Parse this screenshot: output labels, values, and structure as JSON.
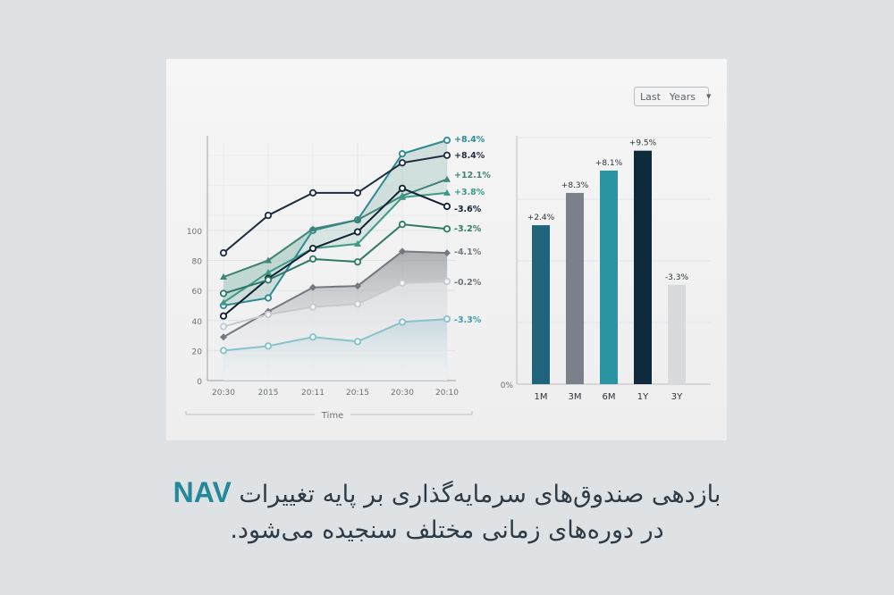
{
  "ui": {
    "dropdown": {
      "text1": "Last",
      "text2": "Years"
    },
    "caption_line1_pre": "بازدهی صندوق‌های سرمایه‌گذاری بر پایه تغییرات",
    "caption_line1_highlight": "NAV",
    "caption_line2": "در دوره‌های زمانی مختلف سنجیده می‌شود."
  },
  "chart_data": [
    {
      "type": "line",
      "xlabel": "Time",
      "x_ticks": [
        "20:30",
        "2015",
        "20:11",
        "20:15",
        "20:30",
        "20:10"
      ],
      "y_ticks": [
        0,
        20,
        40,
        60,
        80,
        100
      ],
      "ylim": [
        0,
        160
      ],
      "grid": true,
      "series": [
        {
          "label": "+8.4%",
          "color": "#2d8a93",
          "marker": "circle-open",
          "values": [
            50,
            55,
            100,
            107,
            151,
            160
          ]
        },
        {
          "label": "+8.4%",
          "color": "#1d2c40",
          "marker": "circle-open",
          "values": [
            85,
            110,
            125,
            125,
            145,
            150
          ]
        },
        {
          "label": "+12.1%",
          "color": "#3f8577",
          "marker": "triangle",
          "values": [
            69,
            80,
            101,
            107,
            123,
            134
          ]
        },
        {
          "label": "+3.8%",
          "color": "#3c9a86",
          "marker": "triangle",
          "values": [
            52,
            72,
            88,
            91,
            122,
            125
          ]
        },
        {
          "label": "-3.6%",
          "color": "#0f2233",
          "marker": "circle-open",
          "values": [
            43,
            68,
            88,
            99,
            128,
            116
          ]
        },
        {
          "label": "-3.2%",
          "color": "#2f7a67",
          "marker": "circle-open",
          "values": [
            58,
            67,
            81,
            79,
            104,
            101
          ]
        },
        {
          "label": "-4.1%",
          "color": "#74797f",
          "marker": "diamond",
          "values": [
            29,
            46,
            62,
            63,
            86,
            85
          ]
        },
        {
          "label": "-0.2%",
          "color": "#c7cacd",
          "marker": "circle-open",
          "values": [
            36,
            44,
            49,
            51,
            65,
            66
          ]
        },
        {
          "label": "-3.3%",
          "color": "#86c3cb",
          "marker": "circle-open",
          "values": [
            20,
            23,
            29,
            26,
            39,
            41
          ]
        }
      ]
    },
    {
      "type": "bar",
      "categories": [
        "1M",
        "3M",
        "6M",
        "1Y",
        "3Y"
      ],
      "values": [
        2.4,
        8.3,
        8.1,
        9.5,
        -3.3
      ],
      "labels": [
        "+2.4%",
        "+8.3%",
        "+8.1%",
        "+9.5%",
        "-3.3%"
      ],
      "colors": [
        "#1e657b",
        "#7b808a",
        "#2a94a2",
        "#102a3d",
        "#d8dadc"
      ],
      "bar_heights_pct": [
        64,
        77,
        86,
        94,
        40
      ],
      "y_tick_label": "0%",
      "grid": true
    }
  ]
}
